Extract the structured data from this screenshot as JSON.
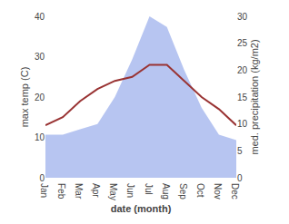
{
  "chart_data": {
    "type": "line",
    "categories": [
      "Jan",
      "Feb",
      "Mar",
      "Apr",
      "May",
      "Jun",
      "Jul",
      "Aug",
      "Sep",
      "Oct",
      "Nov",
      "Dec"
    ],
    "series": [
      {
        "type": "area",
        "color": "#aabbee",
        "axis": "y2",
        "values": [
          8,
          8,
          9,
          10,
          15,
          22,
          30,
          28,
          20,
          13,
          8,
          7
        ]
      },
      {
        "type": "line",
        "color": "#993333",
        "values": [
          13,
          15,
          19,
          22,
          24,
          25,
          28,
          28,
          24,
          20,
          17,
          13
        ]
      }
    ],
    "xlabel": "date (month)",
    "ylabel": "max temp (C)",
    "y2label": "med. precipitation (kg/m2)",
    "ylim": [
      0,
      40
    ],
    "yticks": [
      0,
      10,
      20,
      30,
      40
    ],
    "y2lim": [
      0,
      30
    ],
    "y2ticks": [
      0,
      5,
      10,
      15,
      20,
      25,
      30
    ],
    "grid": false
  }
}
